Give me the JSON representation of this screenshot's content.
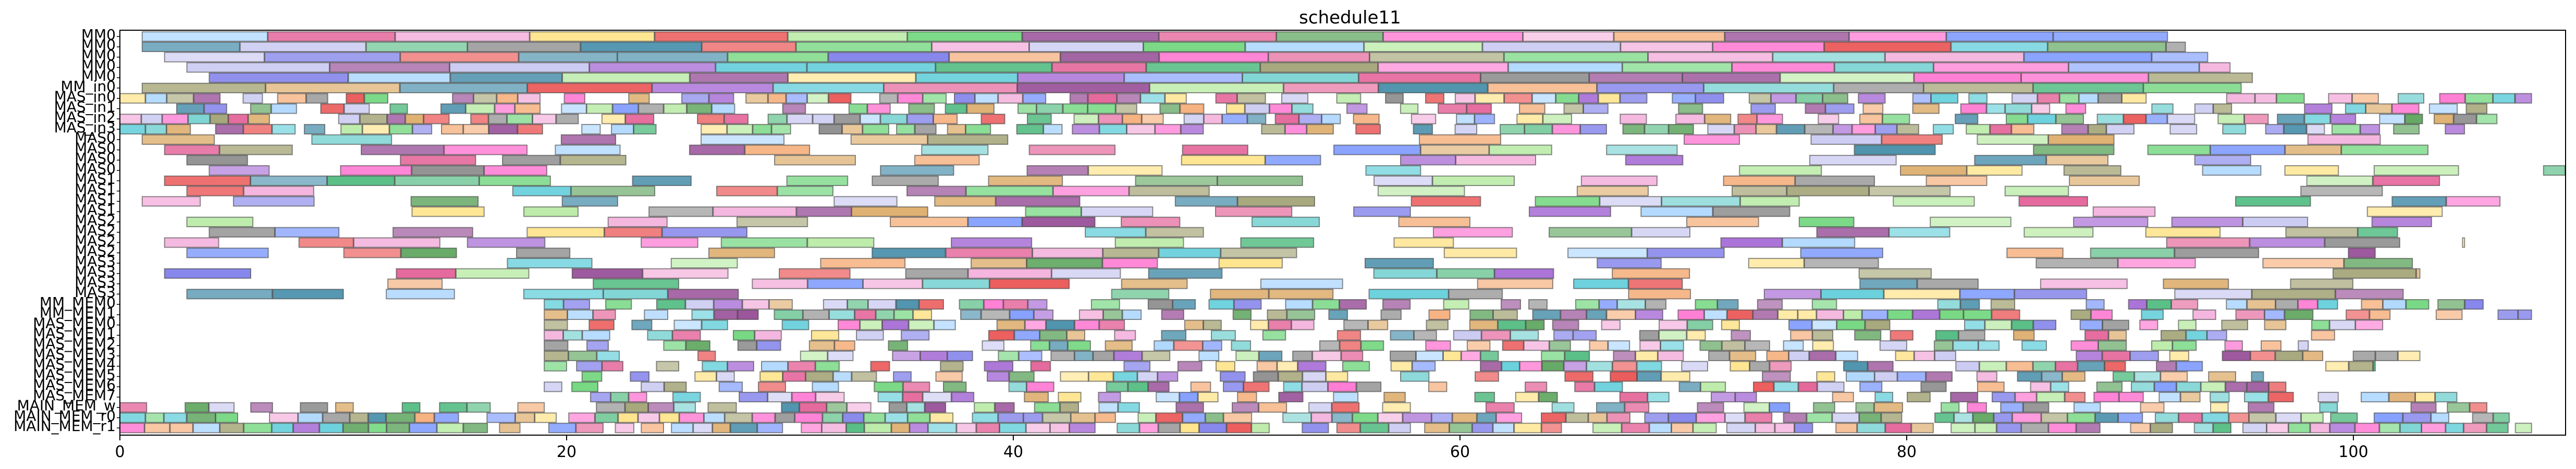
{
  "chart_data": {
    "type": "gantt",
    "title": "schedule11",
    "xlabel": "",
    "ylabel": "",
    "xlim": [
      0,
      109.5
    ],
    "x_ticks": [
      0,
      20,
      40,
      60,
      80,
      100
    ],
    "x_tick_labels": [
      "0",
      "20",
      "40",
      "60",
      "80",
      "100"
    ],
    "grid": false,
    "rows": [
      "MM0",
      "MM0",
      "MM0",
      "MM0",
      "MM0",
      "MM_in0",
      "MAS_in0",
      "MAS_in1",
      "MAS_in2",
      "MAS_in3",
      "MAS0",
      "MAS0",
      "MAS0",
      "MAS0",
      "MAS1",
      "MAS1",
      "MAS1",
      "MAS1",
      "MAS2",
      "MAS2",
      "MAS2",
      "MAS2",
      "MAS3",
      "MAS3",
      "MAS3",
      "MAS3",
      "MM_MEM0",
      "MM_MEM1",
      "MAS_MEM0",
      "MAS_MEM1",
      "MAS_MEM2",
      "MAS_MEM3",
      "MAS_MEM4",
      "MAS_MEM5",
      "MAS_MEM6",
      "MAS_MEM7",
      "MAIN_MEM_w",
      "MAIN_MEM_r0",
      "MAIN_MEM_r1"
    ],
    "row_spans": [
      [
        1,
        91.7
      ],
      [
        1,
        92.5
      ],
      [
        2,
        93.5
      ],
      [
        3,
        94.5
      ],
      [
        4,
        95.5
      ],
      [
        1,
        95
      ],
      [
        0,
        108
      ],
      [
        0,
        106
      ],
      [
        0,
        107
      ],
      [
        0,
        105
      ],
      [
        1,
        103
      ],
      [
        2,
        106
      ],
      [
        3,
        99
      ],
      [
        4,
        109.5
      ],
      [
        2,
        105
      ],
      [
        3,
        103
      ],
      [
        1,
        107
      ],
      [
        2,
        104
      ],
      [
        3,
        106
      ],
      [
        4,
        102
      ],
      [
        2,
        105
      ],
      [
        3,
        101
      ],
      [
        1,
        104
      ],
      [
        2,
        103
      ],
      [
        3,
        100
      ],
      [
        3,
        105
      ],
      [
        19,
        106
      ],
      [
        19,
        108
      ],
      [
        19,
        102
      ],
      [
        19,
        100
      ],
      [
        19,
        98
      ],
      [
        19,
        103
      ],
      [
        19,
        101
      ],
      [
        19,
        96
      ],
      [
        19,
        97
      ],
      [
        19,
        105
      ],
      [
        0,
        106
      ],
      [
        0,
        107
      ],
      [
        0,
        108
      ]
    ],
    "row_densities": [
      1,
      1,
      1,
      1,
      1,
      1,
      0.7,
      0.7,
      0.7,
      0.7,
      0.55,
      0.55,
      0.55,
      0.55,
      0.55,
      0.55,
      0.55,
      0.55,
      0.55,
      0.55,
      0.55,
      0.55,
      0.55,
      0.55,
      0.55,
      0.55,
      0.7,
      0.7,
      0.65,
      0.65,
      0.65,
      0.65,
      0.65,
      0.65,
      0.65,
      0.65,
      0.6,
      0.85,
      0.85
    ],
    "row_task_durations": [
      5,
      5,
      5,
      5,
      5,
      5,
      1,
      1,
      1,
      1,
      3,
      3,
      3,
      3,
      3,
      3,
      3,
      3,
      3,
      3,
      3,
      3,
      3,
      3,
      3,
      3,
      1,
      1,
      1,
      1,
      1,
      1,
      1,
      1,
      1,
      1,
      1,
      1,
      1
    ],
    "series_colors": [
      "#8b3a8b",
      "#e04d8a",
      "#f2a7d8",
      "#5fd16d",
      "#b0e89a",
      "#7f7f7f",
      "#6f8fff",
      "#a3d2ff",
      "#f4a56b",
      "#ffe07a",
      "#51c9d6",
      "#9b59d0",
      "#e84040",
      "#4a9a4a",
      "#c2c2f0",
      "#2f7f9f",
      "#d9a35a",
      "#7070e8",
      "#3cb371",
      "#ff66cc",
      "#999966",
      "#66cccc"
    ]
  }
}
